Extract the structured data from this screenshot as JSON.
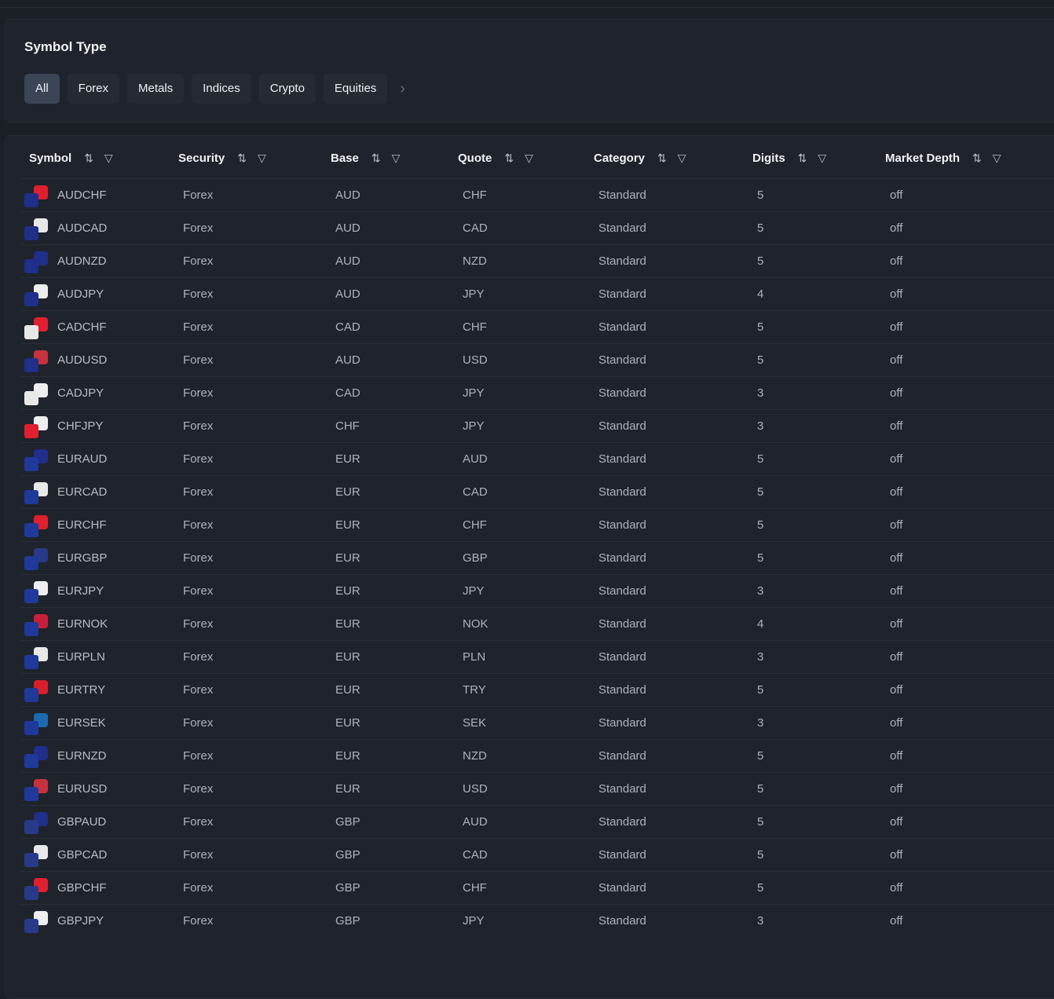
{
  "filter": {
    "title": "Symbol Type",
    "chips": [
      "All",
      "Forex",
      "Metals",
      "Indices",
      "Crypto",
      "Equities"
    ],
    "active": "All",
    "next_icon": "chevron-right-icon"
  },
  "table": {
    "columns": [
      "Symbol",
      "Security",
      "Base",
      "Quote",
      "Category",
      "Digits",
      "Market Depth"
    ],
    "sort_icon": "sort-icon",
    "filter_icon": "filter-icon",
    "rows": [
      [
        "AUDCHF",
        "Forex",
        "AUD",
        "CHF",
        "Standard",
        "5",
        "off"
      ],
      [
        "AUDCAD",
        "Forex",
        "AUD",
        "CAD",
        "Standard",
        "5",
        "off"
      ],
      [
        "AUDNZD",
        "Forex",
        "AUD",
        "NZD",
        "Standard",
        "5",
        "off"
      ],
      [
        "AUDJPY",
        "Forex",
        "AUD",
        "JPY",
        "Standard",
        "4",
        "off"
      ],
      [
        "CADCHF",
        "Forex",
        "CAD",
        "CHF",
        "Standard",
        "5",
        "off"
      ],
      [
        "AUDUSD",
        "Forex",
        "AUD",
        "USD",
        "Standard",
        "5",
        "off"
      ],
      [
        "CADJPY",
        "Forex",
        "CAD",
        "JPY",
        "Standard",
        "3",
        "off"
      ],
      [
        "CHFJPY",
        "Forex",
        "CHF",
        "JPY",
        "Standard",
        "3",
        "off"
      ],
      [
        "EURAUD",
        "Forex",
        "EUR",
        "AUD",
        "Standard",
        "5",
        "off"
      ],
      [
        "EURCAD",
        "Forex",
        "EUR",
        "CAD",
        "Standard",
        "5",
        "off"
      ],
      [
        "EURCHF",
        "Forex",
        "EUR",
        "CHF",
        "Standard",
        "5",
        "off"
      ],
      [
        "EURGBP",
        "Forex",
        "EUR",
        "GBP",
        "Standard",
        "5",
        "off"
      ],
      [
        "EURJPY",
        "Forex",
        "EUR",
        "JPY",
        "Standard",
        "3",
        "off"
      ],
      [
        "EURNOK",
        "Forex",
        "EUR",
        "NOK",
        "Standard",
        "4",
        "off"
      ],
      [
        "EURPLN",
        "Forex",
        "EUR",
        "PLN",
        "Standard",
        "3",
        "off"
      ],
      [
        "EURTRY",
        "Forex",
        "EUR",
        "TRY",
        "Standard",
        "5",
        "off"
      ],
      [
        "EURSEK",
        "Forex",
        "EUR",
        "SEK",
        "Standard",
        "3",
        "off"
      ],
      [
        "EURNZD",
        "Forex",
        "EUR",
        "NZD",
        "Standard",
        "5",
        "off"
      ],
      [
        "EURUSD",
        "Forex",
        "EUR",
        "USD",
        "Standard",
        "5",
        "off"
      ],
      [
        "GBPAUD",
        "Forex",
        "GBP",
        "AUD",
        "Standard",
        "5",
        "off"
      ],
      [
        "GBPCAD",
        "Forex",
        "GBP",
        "CAD",
        "Standard",
        "5",
        "off"
      ],
      [
        "GBPCHF",
        "Forex",
        "GBP",
        "CHF",
        "Standard",
        "5",
        "off"
      ],
      [
        "GBPJPY",
        "Forex",
        "GBP",
        "JPY",
        "Standard",
        "3",
        "off"
      ]
    ]
  },
  "colors": {
    "flag": {
      "AUD": "#1f2f8a",
      "CHF": "#e0202e",
      "CAD": "#e8e8e8",
      "NZD": "#1f2f8a",
      "JPY": "#eeeeee",
      "USD": "#c8323e",
      "EUR": "#1f3a9a",
      "GBP": "#2a3a8a",
      "NOK": "#c8203a",
      "PLN": "#e8e8e8",
      "TRY": "#d8202a",
      "SEK": "#1e6ab0"
    }
  }
}
